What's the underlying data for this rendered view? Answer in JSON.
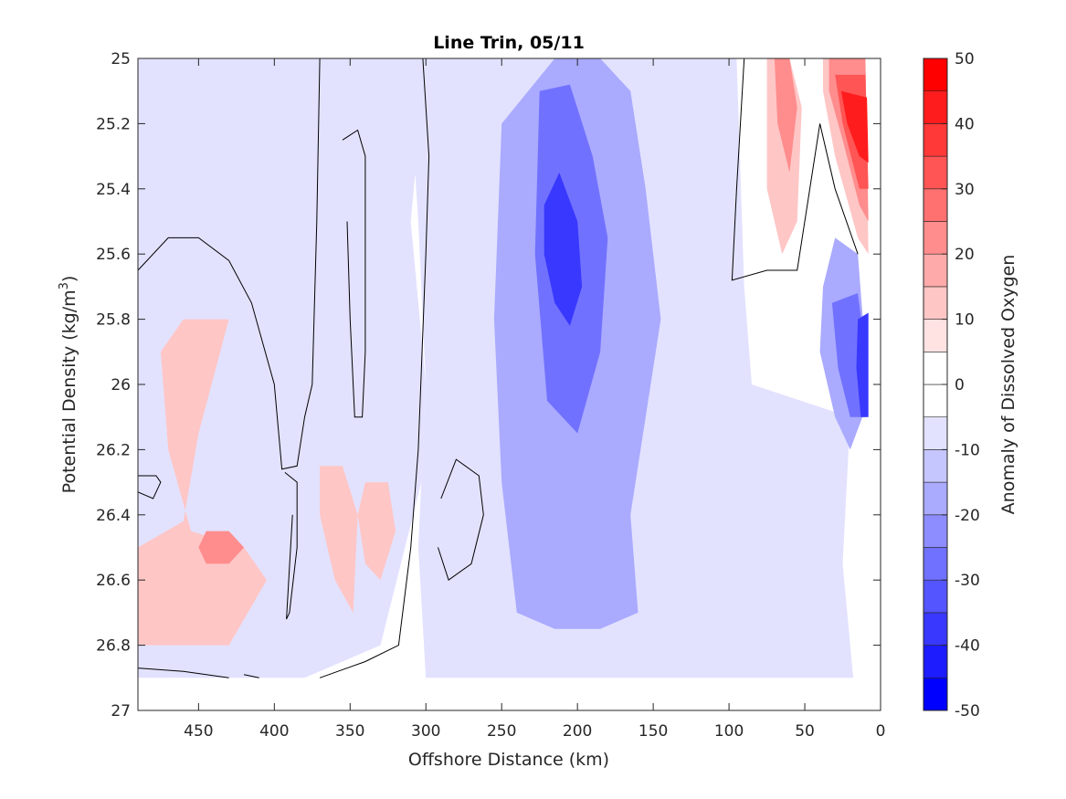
{
  "chart_data": {
    "type": "heatmap",
    "title": "Line Trin, 05/11",
    "xlabel": "Offshore Distance (km)",
    "ylabel_main": "Potential Density (kg/m",
    "ylabel_sup": "3",
    "ylabel_end": ")",
    "xlim": [
      490,
      0
    ],
    "ylim": [
      25,
      27
    ],
    "xticks": [
      450,
      400,
      350,
      300,
      250,
      200,
      150,
      100,
      50,
      0
    ],
    "xtick_labels": [
      "450",
      "400",
      "350",
      "300",
      "250",
      "200",
      "150",
      "100",
      "50",
      "0"
    ],
    "yticks": [
      25,
      25.2,
      25.4,
      25.6,
      25.8,
      26,
      26.2,
      26.4,
      26.6,
      26.8,
      27
    ],
    "ytick_labels": [
      "25",
      "25.2",
      "25.4",
      "25.6",
      "25.8",
      "26",
      "26.2",
      "26.4",
      "26.6",
      "26.8",
      "27"
    ],
    "colorbar": {
      "label": "Anomaly of Dissolved Oxygen",
      "levels": [
        -50,
        -45,
        -40,
        -35,
        -30,
        -25,
        -20,
        -15,
        -10,
        -5,
        0,
        5,
        10,
        15,
        20,
        25,
        30,
        35,
        40,
        45,
        50
      ],
      "colors": [
        "#0000ff",
        "#1c1cff",
        "#3838ff",
        "#5555ff",
        "#7171ff",
        "#8d8dff",
        "#aaaaff",
        "#c6c6ff",
        "#e2e2ff",
        "#ffffff",
        "#ffffff",
        "#ffe2e2",
        "#ffc6c6",
        "#ffaaaa",
        "#ff8d8d",
        "#ff7171",
        "#ff5555",
        "#ff3838",
        "#ff1c1c",
        "#ff0000"
      ],
      "ticks": [
        -50,
        -40,
        -30,
        -20,
        -10,
        0,
        10,
        20,
        30,
        40,
        50
      ],
      "tick_labels": [
        "-50",
        "-40",
        "-30",
        "-20",
        "-10",
        "0",
        "10",
        "20",
        "30",
        "40",
        "50"
      ]
    },
    "filled_regions": [
      {
        "level": -10,
        "points": [
          [
            490,
            25
          ],
          [
            300,
            25
          ],
          [
            310,
            25.5
          ],
          [
            300,
            26.0
          ],
          [
            303,
            26.3
          ],
          [
            330,
            26.8
          ],
          [
            380,
            26.9
          ],
          [
            420,
            26.9
          ],
          [
            490,
            26.9
          ]
        ]
      },
      {
        "level": -10,
        "points": [
          [
            312,
            25
          ],
          [
            95,
            25
          ],
          [
            90,
            25.7
          ],
          [
            85,
            26
          ],
          [
            20,
            26.1
          ],
          [
            25,
            26.55
          ],
          [
            18,
            26.9
          ],
          [
            75,
            26.9
          ],
          [
            100,
            26.9
          ],
          [
            150,
            26.9
          ],
          [
            250,
            26.9
          ],
          [
            300,
            26.9
          ],
          [
            305,
            26.5
          ],
          [
            300,
            26.0
          ],
          [
            305,
            25.5
          ]
        ]
      },
      {
        "level": -20,
        "points": [
          [
            250,
            25.2
          ],
          [
            215,
            25.0
          ],
          [
            185,
            25.0
          ],
          [
            165,
            25.1
          ],
          [
            155,
            25.4
          ],
          [
            145,
            25.8
          ],
          [
            155,
            26.1
          ],
          [
            165,
            26.4
          ],
          [
            160,
            26.7
          ],
          [
            185,
            26.75
          ],
          [
            215,
            26.75
          ],
          [
            240,
            26.7
          ],
          [
            250,
            26.3
          ],
          [
            255,
            25.8
          ]
        ]
      },
      {
        "level": -30,
        "points": [
          [
            225,
            25.1
          ],
          [
            205,
            25.08
          ],
          [
            190,
            25.3
          ],
          [
            180,
            25.55
          ],
          [
            185,
            25.9
          ],
          [
            200,
            26.15
          ],
          [
            220,
            26.05
          ],
          [
            228,
            25.6
          ]
        ]
      },
      {
        "level": -40,
        "points": [
          [
            222,
            25.45
          ],
          [
            212,
            25.35
          ],
          [
            200,
            25.5
          ],
          [
            197,
            25.7
          ],
          [
            205,
            25.82
          ],
          [
            215,
            25.75
          ],
          [
            222,
            25.6
          ]
        ]
      },
      {
        "level": -20,
        "points": [
          [
            38,
            25.7
          ],
          [
            30,
            25.55
          ],
          [
            15,
            25.6
          ],
          [
            10,
            25.9
          ],
          [
            12,
            26.1
          ],
          [
            20,
            26.2
          ],
          [
            30,
            26.1
          ],
          [
            40,
            25.9
          ]
        ]
      },
      {
        "level": -30,
        "points": [
          [
            32,
            25.75
          ],
          [
            15,
            25.72
          ],
          [
            10,
            25.9
          ],
          [
            10,
            26.1
          ],
          [
            20,
            26.1
          ],
          [
            28,
            25.95
          ]
        ]
      },
      {
        "level": -40,
        "points": [
          [
            15,
            25.8
          ],
          [
            8,
            25.78
          ],
          [
            8,
            26.1
          ],
          [
            13,
            26.1
          ],
          [
            16,
            25.95
          ]
        ]
      },
      {
        "level": 10,
        "points": [
          [
            490,
            26.5
          ],
          [
            460,
            26.42
          ],
          [
            450,
            26.15
          ],
          [
            430,
            25.8
          ],
          [
            460,
            25.8
          ],
          [
            475,
            25.9
          ],
          [
            470,
            26.2
          ],
          [
            455,
            26.45
          ],
          [
            420,
            26.5
          ],
          [
            405,
            26.6
          ],
          [
            430,
            26.8
          ],
          [
            490,
            26.8
          ]
        ]
      },
      {
        "level": 10,
        "points": [
          [
            370,
            26.25
          ],
          [
            355,
            26.25
          ],
          [
            345,
            26.4
          ],
          [
            348,
            26.7
          ],
          [
            360,
            26.6
          ],
          [
            370,
            26.4
          ]
        ]
      },
      {
        "level": 10,
        "points": [
          [
            340,
            26.3
          ],
          [
            325,
            26.3
          ],
          [
            320,
            26.45
          ],
          [
            330,
            26.6
          ],
          [
            340,
            26.55
          ],
          [
            345,
            26.4
          ]
        ]
      },
      {
        "level": 20,
        "points": [
          [
            445,
            26.45
          ],
          [
            430,
            26.45
          ],
          [
            420,
            26.5
          ],
          [
            430,
            26.55
          ],
          [
            445,
            26.55
          ],
          [
            450,
            26.5
          ]
        ]
      },
      {
        "level": 10,
        "points": [
          [
            75,
            25
          ],
          [
            60,
            25
          ],
          [
            52,
            25.15
          ],
          [
            55,
            25.5
          ],
          [
            65,
            25.6
          ],
          [
            75,
            25.4
          ]
        ]
      },
      {
        "level": 20,
        "points": [
          [
            70,
            25.0
          ],
          [
            60,
            25.0
          ],
          [
            55,
            25.15
          ],
          [
            60,
            25.35
          ],
          [
            68,
            25.2
          ]
        ]
      },
      {
        "level": 10,
        "points": [
          [
            38,
            25
          ],
          [
            10,
            25
          ],
          [
            8,
            25.6
          ],
          [
            15,
            25.55
          ],
          [
            30,
            25.3
          ],
          [
            38,
            25.1
          ]
        ]
      },
      {
        "level": 20,
        "points": [
          [
            34,
            25
          ],
          [
            10,
            25
          ],
          [
            8,
            25.5
          ],
          [
            14,
            25.45
          ],
          [
            25,
            25.25
          ],
          [
            34,
            25.1
          ]
        ]
      },
      {
        "level": 30,
        "points": [
          [
            30,
            25.05
          ],
          [
            10,
            25.05
          ],
          [
            8,
            25.4
          ],
          [
            14,
            25.4
          ],
          [
            25,
            25.2
          ]
        ]
      },
      {
        "level": 40,
        "points": [
          [
            26,
            25.1
          ],
          [
            9,
            25.12
          ],
          [
            8,
            25.32
          ],
          [
            14,
            25.3
          ],
          [
            22,
            25.2
          ]
        ]
      }
    ],
    "contour_lines": [
      {
        "level": 0,
        "points": [
          [
            490,
            25.65
          ],
          [
            470,
            25.55
          ],
          [
            450,
            25.55
          ],
          [
            430,
            25.62
          ],
          [
            415,
            25.75
          ],
          [
            400,
            26.0
          ],
          [
            395,
            26.26
          ],
          [
            385,
            26.25
          ],
          [
            380,
            26.1
          ],
          [
            375,
            26.0
          ],
          [
            372,
            25.5
          ],
          [
            370,
            25.0
          ]
        ]
      },
      {
        "level": 0,
        "points": [
          [
            355,
            25.25
          ],
          [
            345,
            25.22
          ],
          [
            340,
            25.3
          ],
          [
            340,
            25.9
          ],
          [
            342,
            26.1
          ],
          [
            347,
            26.1
          ],
          [
            350,
            25.8
          ],
          [
            352,
            25.5
          ]
        ]
      },
      {
        "level": 0,
        "points": [
          [
            393,
            26.27
          ],
          [
            385,
            26.3
          ],
          [
            385,
            26.5
          ],
          [
            390,
            26.7
          ],
          [
            392,
            26.72
          ],
          [
            388,
            26.4
          ]
        ]
      },
      {
        "level": 0,
        "points": [
          [
            290,
            26.35
          ],
          [
            280,
            26.23
          ],
          [
            265,
            26.28
          ],
          [
            262,
            26.4
          ],
          [
            270,
            26.55
          ],
          [
            285,
            26.6
          ],
          [
            292,
            26.5
          ]
        ]
      },
      {
        "level": 0,
        "points": [
          [
            302,
            25
          ],
          [
            298,
            25.3
          ],
          [
            300,
            25.6
          ],
          [
            305,
            26.2
          ],
          [
            310,
            26.5
          ],
          [
            318,
            26.8
          ],
          [
            340,
            26.85
          ],
          [
            370,
            26.9
          ]
        ]
      },
      {
        "level": 0,
        "points": [
          [
            490,
            26.28
          ],
          [
            478,
            26.28
          ],
          [
            475,
            26.3
          ],
          [
            480,
            26.35
          ],
          [
            490,
            26.33
          ]
        ]
      },
      {
        "level": 0,
        "points": [
          [
            90,
            25
          ],
          [
            95,
            25.4
          ],
          [
            98,
            25.68
          ],
          [
            75,
            25.65
          ],
          [
            55,
            25.65
          ],
          [
            45,
            25.35
          ],
          [
            40,
            25.2
          ],
          [
            30,
            25.4
          ],
          [
            15,
            25.6
          ]
        ]
      },
      {
        "level": 0,
        "points": [
          [
            490,
            26.87
          ],
          [
            460,
            26.88
          ],
          [
            430,
            26.9
          ]
        ]
      },
      {
        "level": 0,
        "points": [
          [
            420,
            26.89
          ],
          [
            410,
            26.9
          ]
        ]
      }
    ]
  }
}
